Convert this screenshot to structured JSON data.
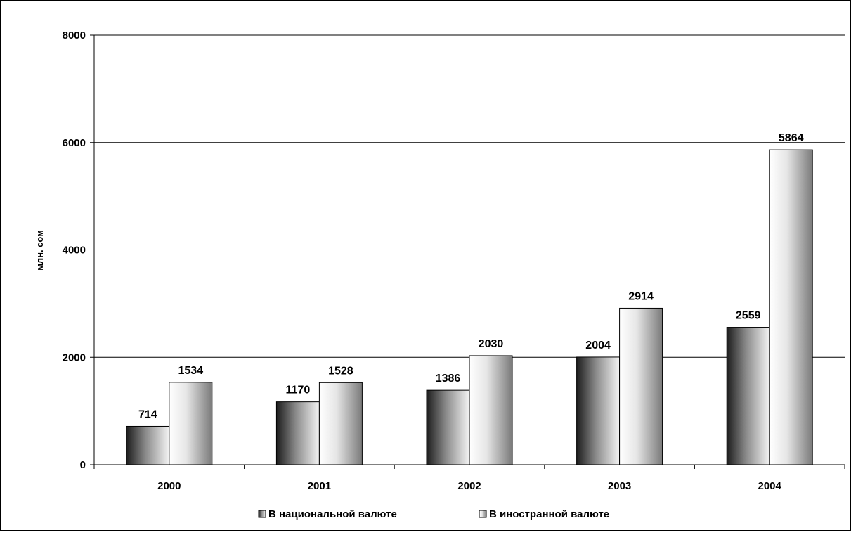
{
  "chart_data": {
    "type": "bar",
    "categories": [
      "2000",
      "2001",
      "2002",
      "2003",
      "2004"
    ],
    "series": [
      {
        "name": "В национальной валюте",
        "values": [
          714,
          1170,
          1386,
          2004,
          2559
        ]
      },
      {
        "name": "В иностранной валюте",
        "values": [
          1534,
          1528,
          2030,
          2914,
          5864
        ]
      }
    ],
    "data_labels": [
      [
        "714",
        "1170",
        "1386",
        "2004",
        "2559"
      ],
      [
        "1534",
        "1528",
        "2030",
        "2914",
        "5864"
      ]
    ],
    "title": "",
    "xlabel": "",
    "ylabel": "млн. сом",
    "ylim": [
      0,
      8000
    ],
    "yticks": [
      "0",
      "2000",
      "4000",
      "6000",
      "8000"
    ],
    "grid": true,
    "legend_position": "bottom"
  }
}
